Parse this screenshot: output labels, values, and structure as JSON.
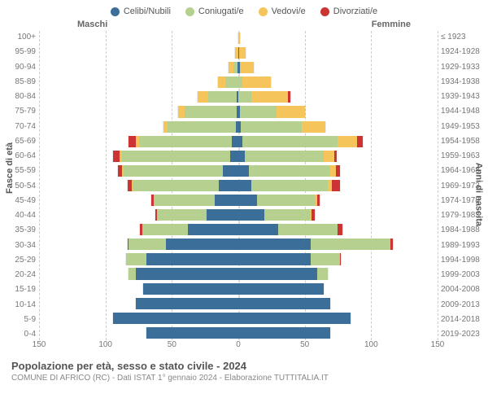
{
  "legend": [
    {
      "label": "Celibi/Nubili",
      "color": "#3b6e98"
    },
    {
      "label": "Coniugati/e",
      "color": "#b6d090"
    },
    {
      "label": "Vedovi/e",
      "color": "#f5c55b"
    },
    {
      "label": "Divorziati/e",
      "color": "#cc3333"
    }
  ],
  "headers": {
    "left": "Maschi",
    "right": "Femmine"
  },
  "axis_titles": {
    "left": "Fasce di età",
    "right": "Anni di nascita"
  },
  "xaxis": {
    "max": 150,
    "ticks": [
      150,
      100,
      50,
      0,
      50,
      100,
      150
    ]
  },
  "age_labels": [
    "100+",
    "95-99",
    "90-94",
    "85-89",
    "80-84",
    "75-79",
    "70-74",
    "65-69",
    "60-64",
    "55-59",
    "50-54",
    "45-49",
    "40-44",
    "35-39",
    "30-34",
    "25-29",
    "20-24",
    "15-19",
    "10-14",
    "5-9",
    "0-4"
  ],
  "birth_labels": [
    "≤ 1923",
    "1924-1928",
    "1929-1933",
    "1934-1938",
    "1939-1943",
    "1944-1948",
    "1949-1953",
    "1954-1958",
    "1959-1963",
    "1964-1968",
    "1969-1973",
    "1974-1978",
    "1979-1983",
    "1984-1988",
    "1989-1993",
    "1994-1998",
    "1999-2003",
    "2004-2008",
    "2009-2013",
    "2014-2018",
    "2019-2023"
  ],
  "rows": [
    {
      "m": [
        0,
        0,
        0,
        0
      ],
      "f": [
        0,
        0,
        2,
        0
      ]
    },
    {
      "m": [
        0,
        0,
        3,
        0
      ],
      "f": [
        1,
        0,
        5,
        0
      ]
    },
    {
      "m": [
        1,
        3,
        4,
        0
      ],
      "f": [
        1,
        1,
        10,
        0
      ]
    },
    {
      "m": [
        0,
        10,
        6,
        0
      ],
      "f": [
        0,
        3,
        22,
        0
      ]
    },
    {
      "m": [
        1,
        22,
        8,
        0
      ],
      "f": [
        0,
        10,
        28,
        2
      ]
    },
    {
      "m": [
        1,
        40,
        5,
        0
      ],
      "f": [
        1,
        28,
        22,
        0
      ]
    },
    {
      "m": [
        2,
        52,
        3,
        0
      ],
      "f": [
        2,
        46,
        18,
        0
      ]
    },
    {
      "m": [
        5,
        70,
        3,
        5
      ],
      "f": [
        3,
        72,
        15,
        4
      ]
    },
    {
      "m": [
        6,
        82,
        2,
        5
      ],
      "f": [
        5,
        60,
        8,
        2
      ]
    },
    {
      "m": [
        12,
        75,
        1,
        3
      ],
      "f": [
        8,
        62,
        4,
        3
      ]
    },
    {
      "m": [
        15,
        65,
        1,
        3
      ],
      "f": [
        10,
        58,
        3,
        6
      ]
    },
    {
      "m": [
        18,
        46,
        0,
        2
      ],
      "f": [
        14,
        45,
        1,
        2
      ]
    },
    {
      "m": [
        24,
        38,
        0,
        1
      ],
      "f": [
        20,
        35,
        1,
        2
      ]
    },
    {
      "m": [
        38,
        35,
        0,
        2
      ],
      "f": [
        30,
        45,
        0,
        4
      ]
    },
    {
      "m": [
        55,
        28,
        0,
        1
      ],
      "f": [
        55,
        60,
        0,
        2
      ]
    },
    {
      "m": [
        70,
        15,
        0,
        0
      ],
      "f": [
        55,
        22,
        0,
        1
      ]
    },
    {
      "m": [
        78,
        5,
        0,
        0
      ],
      "f": [
        60,
        8,
        0,
        0
      ]
    },
    {
      "m": [
        72,
        0,
        0,
        0
      ],
      "f": [
        65,
        0,
        0,
        0
      ]
    },
    {
      "m": [
        78,
        0,
        0,
        0
      ],
      "f": [
        70,
        0,
        0,
        0
      ]
    },
    {
      "m": [
        95,
        0,
        0,
        0
      ],
      "f": [
        85,
        0,
        0,
        0
      ]
    },
    {
      "m": [
        70,
        0,
        0,
        0
      ],
      "f": [
        70,
        0,
        0,
        0
      ]
    }
  ],
  "footer": {
    "title": "Popolazione per età, sesso e stato civile - 2024",
    "subtitle": "COMUNE DI AFRICO (RC) - Dati ISTAT 1° gennaio 2024 - Elaborazione TUTTITALIA.IT"
  },
  "colors": {
    "grid": "#cccccc",
    "bg": "#ffffff"
  }
}
